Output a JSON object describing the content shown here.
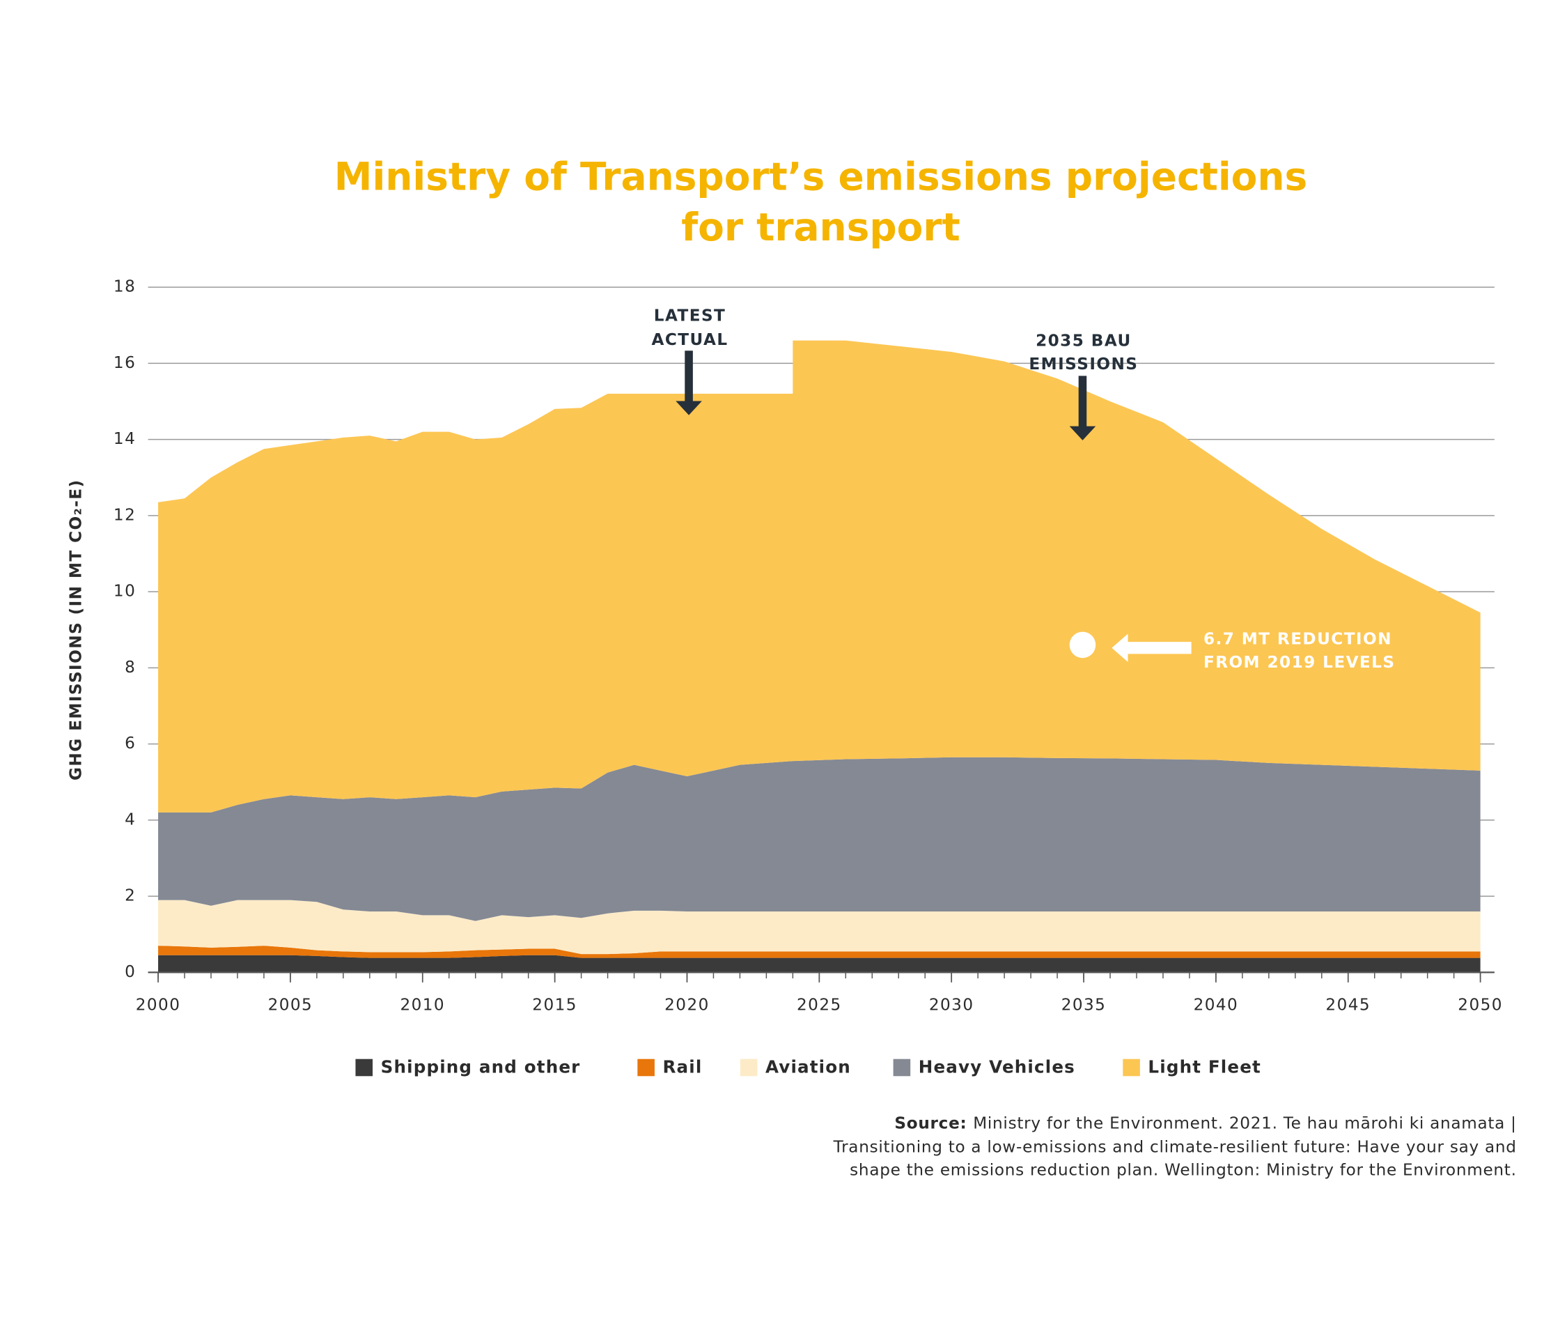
{
  "chart_data": {
    "type": "stacked-area",
    "title": [
      "Ministry of Transport’s emissions projections",
      "for transport"
    ],
    "y_label": "GHG EMISSIONS (IN MT CO₂-E)",
    "x": [
      2000,
      2001,
      2002,
      2003,
      2004,
      2005,
      2006,
      2007,
      2008,
      2009,
      2010,
      2011,
      2012,
      2013,
      2014,
      2015,
      2016,
      2017,
      2018,
      2019,
      2020,
      2021,
      2022,
      2023,
      2024,
      2024,
      2026,
      2028,
      2030,
      2032,
      2034,
      2036,
      2038,
      2040,
      2042,
      2044,
      2046,
      2048,
      2050
    ],
    "xlim": [
      2000,
      2050
    ],
    "xticks": [
      2000,
      2005,
      2010,
      2015,
      2020,
      2025,
      2030,
      2035,
      2040,
      2045,
      2050
    ],
    "ylim": [
      0,
      18
    ],
    "yticks": [
      0,
      2,
      4,
      6,
      8,
      10,
      12,
      14,
      16,
      18
    ],
    "grid": true,
    "series": [
      {
        "name": "Shipping and other",
        "color": "#3a3a3a",
        "values": [
          0.45,
          0.45,
          0.45,
          0.45,
          0.45,
          0.45,
          0.43,
          0.4,
          0.38,
          0.38,
          0.38,
          0.38,
          0.4,
          0.43,
          0.45,
          0.45,
          0.38,
          0.38,
          0.38,
          0.38,
          0.38,
          0.38,
          0.38,
          0.38,
          0.38,
          0.38,
          0.38,
          0.38,
          0.38,
          0.38,
          0.38,
          0.38,
          0.38,
          0.38,
          0.38,
          0.38,
          0.38,
          0.38,
          0.38
        ]
      },
      {
        "name": "Rail",
        "color": "#e8760a",
        "values": [
          0.25,
          0.23,
          0.2,
          0.22,
          0.25,
          0.2,
          0.15,
          0.15,
          0.15,
          0.15,
          0.15,
          0.17,
          0.18,
          0.17,
          0.17,
          0.17,
          0.1,
          0.1,
          0.12,
          0.17,
          0.17,
          0.17,
          0.17,
          0.17,
          0.17,
          0.17,
          0.17,
          0.17,
          0.17,
          0.17,
          0.17,
          0.17,
          0.17,
          0.17,
          0.17,
          0.17,
          0.17,
          0.17,
          0.17
        ]
      },
      {
        "name": "Aviation",
        "color": "#fdebc8",
        "values": [
          1.2,
          1.22,
          1.1,
          1.23,
          1.2,
          1.25,
          1.27,
          1.1,
          1.07,
          1.07,
          0.97,
          0.95,
          0.77,
          0.9,
          0.83,
          0.88,
          0.95,
          1.07,
          1.12,
          1.07,
          1.05,
          1.05,
          1.05,
          1.05,
          1.05,
          1.05,
          1.05,
          1.05,
          1.05,
          1.05,
          1.05,
          1.05,
          1.05,
          1.05,
          1.05,
          1.05,
          1.05,
          1.05,
          1.05
        ]
      },
      {
        "name": "Heavy Vehicles",
        "color": "#848994",
        "values": [
          2.3,
          2.3,
          2.45,
          2.5,
          2.65,
          2.75,
          2.75,
          2.9,
          3.0,
          2.95,
          3.1,
          3.15,
          3.25,
          3.25,
          3.35,
          3.35,
          3.4,
          3.7,
          3.83,
          3.68,
          3.55,
          3.7,
          3.85,
          3.9,
          3.95,
          3.95,
          4.0,
          4.02,
          4.05,
          4.05,
          4.03,
          4.02,
          4.0,
          3.98,
          3.9,
          3.85,
          3.8,
          3.75,
          3.7
        ]
      },
      {
        "name": "Light Fleet",
        "color": "#fcc653",
        "values": [
          8.15,
          8.25,
          8.8,
          9.0,
          9.2,
          9.2,
          9.35,
          9.5,
          9.5,
          9.4,
          9.6,
          9.55,
          9.4,
          9.3,
          9.6,
          9.95,
          10.0,
          9.95,
          9.75,
          9.9,
          10.05,
          9.9,
          9.75,
          9.7,
          9.65,
          11.05,
          11.0,
          10.83,
          10.65,
          10.4,
          9.97,
          9.38,
          8.85,
          7.92,
          7.05,
          6.2,
          5.45,
          4.8,
          4.15
        ]
      }
    ],
    "annotations": [
      {
        "lines": [
          "LATEST",
          "ACTUAL"
        ]
      },
      {
        "lines": [
          "2035 BAU",
          "EMISSIONS"
        ]
      },
      {
        "lines": [
          "6.7 MT REDUCTION",
          "FROM 2019 LEVELS"
        ]
      }
    ],
    "source_label": "Source:",
    "source_lines": [
      "Ministry for the Environment. 2021. Te hau mārohi ki anamata |",
      "Transitioning to a low-emissions and climate-resilient future: Have your say and",
      "shape the emissions reduction plan. Wellington: Ministry for the Environment."
    ]
  }
}
